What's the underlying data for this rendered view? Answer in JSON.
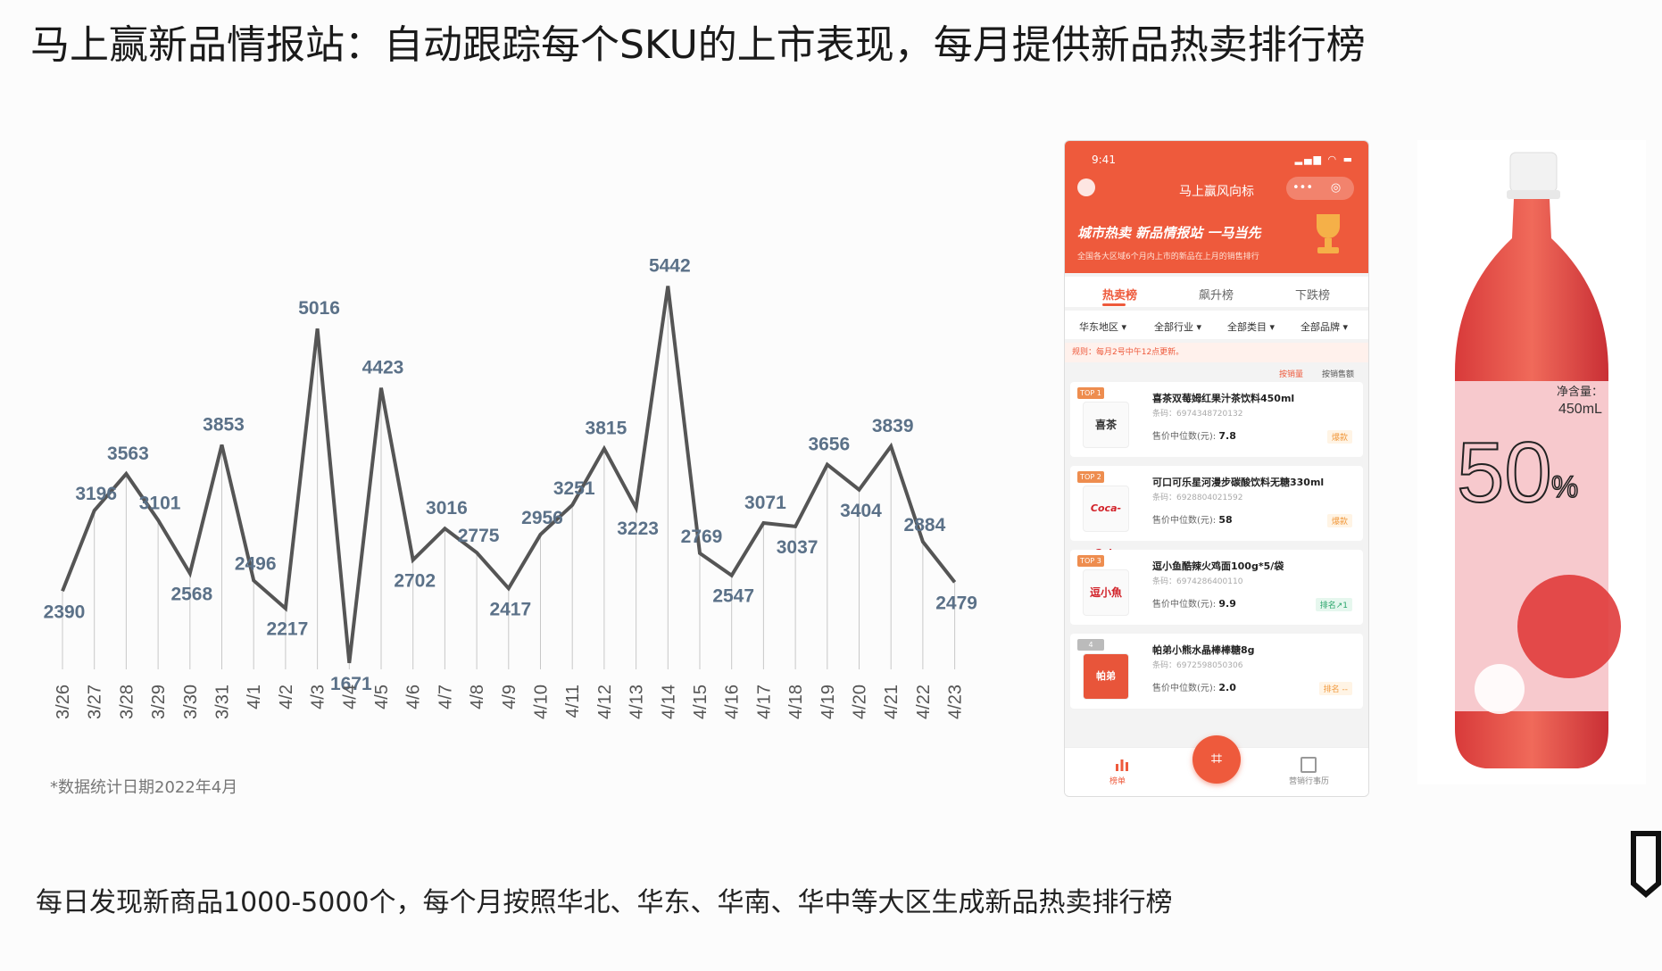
{
  "title": "马上赢新品情报站：自动跟踪每个SKU的上市表现，每月提供新品热卖排行榜",
  "footnote": "*数据统计日期2022年4月",
  "bottom_text": "每日发现新商品1000-5000个，每个月按照华北、华东、华南、华中等大区生成新品热卖排行榜",
  "colors": {
    "line": "#555555",
    "label": "#5b7188",
    "accent": "#ee5a3c"
  },
  "chart_data": {
    "type": "line",
    "title": "",
    "xlabel": "",
    "ylabel": "",
    "grid": false,
    "legend": "none",
    "categories": [
      "3/26",
      "3/27",
      "3/28",
      "3/29",
      "3/30",
      "3/31",
      "4/1",
      "4/2",
      "4/3",
      "4/4",
      "4/5",
      "4/6",
      "4/7",
      "4/8",
      "4/9",
      "4/10",
      "4/11",
      "4/12",
      "4/13",
      "4/14",
      "4/15",
      "4/16",
      "4/17",
      "4/18",
      "4/19",
      "4/20",
      "4/21",
      "4/22",
      "4/23"
    ],
    "series": [
      {
        "values": [
          2390,
          3196,
          3563,
          3101,
          2568,
          3853,
          2496,
          2217,
          5016,
          1671,
          4423,
          2702,
          3016,
          2775,
          2417,
          2956,
          3251,
          3815,
          3223,
          5442,
          2769,
          2547,
          3071,
          3037,
          3656,
          3404,
          3839,
          2884,
          2479
        ]
      }
    ],
    "ylim": [
      1000,
      6000
    ]
  },
  "phone": {
    "time": "9:41",
    "app_title": "马上赢风向标",
    "capsule_more": "•••",
    "capsule_close": "◎",
    "banner": "城市热卖  新品情报站  一马当先",
    "banner_sub": "全国各大区域6个月内上市的新品在上月的销售排行",
    "tabs": [
      "热卖榜",
      "飙升榜",
      "下跌榜"
    ],
    "filters": [
      "华东地区 ▾",
      "全部行业 ▾",
      "全部类目 ▾",
      "全部品牌 ▾"
    ],
    "rule": "规则：每月2号中午12点更新。",
    "sort": [
      "按销量",
      "按销售额"
    ],
    "items": [
      {
        "rank": "TOP 1",
        "thumb": "喜茶",
        "name": "喜茶双莓姆红果汁茶饮料450ml",
        "code": "条码：6974348720132",
        "price_label": "售价中位数(元): ",
        "price": "7.8",
        "tag": "爆款"
      },
      {
        "rank": "TOP 2",
        "thumb": "Coca-Cola",
        "name": "可口可乐星河漫步碳酸饮料无糖330ml",
        "code": "条码：6928804021592",
        "price_label": "售价中位数(元): ",
        "price": "58",
        "tag": "爆款"
      },
      {
        "rank": "TOP 3",
        "thumb": "逗小魚",
        "name": "逗小鱼酷辣火鸡面100g*5/袋",
        "code": "条码：6974286400110",
        "price_label": "售价中位数(元): ",
        "price": "9.9",
        "tag": "排名↗1"
      },
      {
        "rank": "4",
        "thumb": "帕弟",
        "name": "帕弟小熊水晶棒棒糖8g",
        "code": "条码：6972598050306",
        "price_label": "售价中位数(元): ",
        "price": "2.0",
        "tag": "排名 --"
      }
    ],
    "bottom_left": "榜单",
    "bottom_right": "营销行事历",
    "scan": "⌗"
  },
  "bottle": {
    "big_text": "50",
    "percent": "%",
    "net": "净含量：",
    "vol": "450mL"
  }
}
